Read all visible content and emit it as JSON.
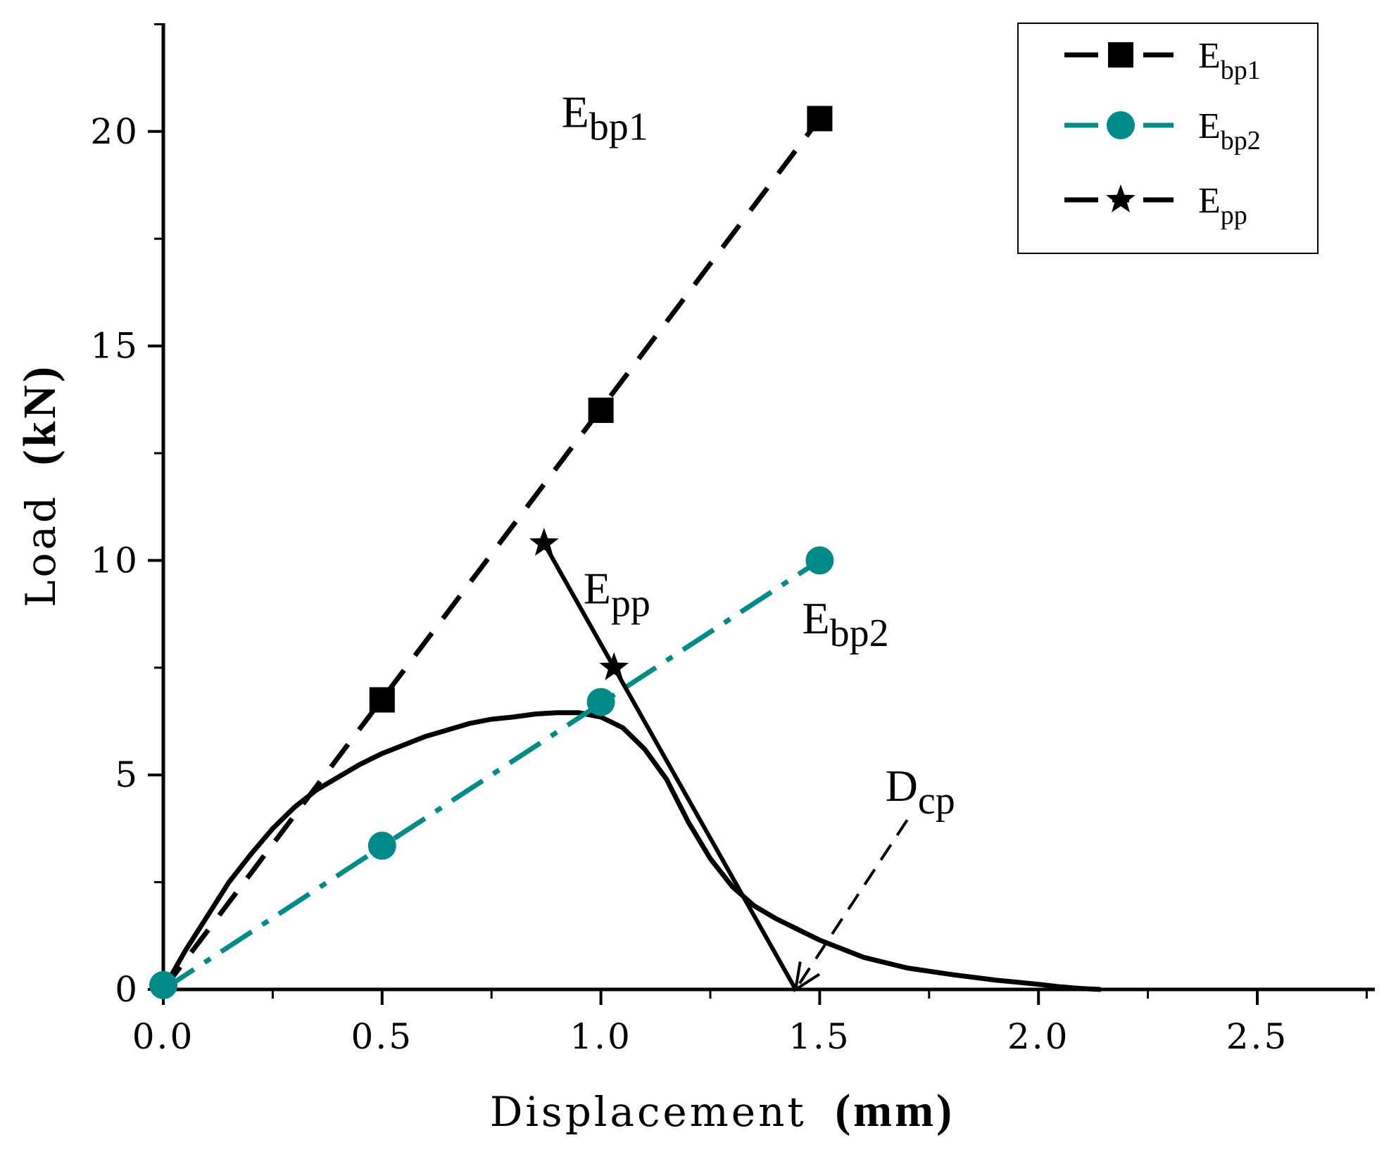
{
  "chart_data": {
    "type": "line",
    "xlabel": "Displacement",
    "xlabel_unit": "(mm)",
    "ylabel": "Load",
    "ylabel_unit": "(kN)",
    "xlim": [
      0.0,
      2.75
    ],
    "ylim": [
      0,
      22.5
    ],
    "x_ticks": [
      {
        "value": 0.0,
        "label": "0.0"
      },
      {
        "value": 0.5,
        "label": "0.5"
      },
      {
        "value": 1.0,
        "label": "1.0"
      },
      {
        "value": 1.5,
        "label": "1.5"
      },
      {
        "value": 2.0,
        "label": "2.0"
      },
      {
        "value": 2.5,
        "label": "2.5"
      }
    ],
    "x_minor_ticks": [
      0.25,
      0.75,
      1.25,
      1.75,
      2.25,
      2.75
    ],
    "y_ticks": [
      {
        "value": 0,
        "label": "0"
      },
      {
        "value": 5,
        "label": "5"
      },
      {
        "value": 10,
        "label": "10"
      },
      {
        "value": 15,
        "label": "15"
      },
      {
        "value": 20,
        "label": "20"
      }
    ],
    "y_minor_ticks": [
      2.5,
      7.5,
      12.5,
      17.5,
      22.5
    ],
    "grid": false,
    "legend_position": "top-right",
    "curve": {
      "name": "load-displacement curve",
      "x": [
        0.0,
        0.05,
        0.1,
        0.15,
        0.2,
        0.25,
        0.3,
        0.35,
        0.4,
        0.45,
        0.5,
        0.55,
        0.6,
        0.65,
        0.7,
        0.75,
        0.8,
        0.85,
        0.9,
        0.95,
        1.0,
        1.05,
        1.1,
        1.15,
        1.2,
        1.25,
        1.3,
        1.35,
        1.4,
        1.45,
        1.5,
        1.55,
        1.6,
        1.7,
        1.8,
        1.9,
        2.0,
        2.05,
        2.1,
        2.14
      ],
      "y": [
        0.0,
        0.9,
        1.7,
        2.5,
        3.15,
        3.75,
        4.25,
        4.65,
        4.95,
        5.25,
        5.5,
        5.7,
        5.9,
        6.05,
        6.2,
        6.3,
        6.35,
        6.42,
        6.45,
        6.45,
        6.35,
        6.1,
        5.6,
        4.9,
        3.9,
        3.05,
        2.4,
        1.95,
        1.65,
        1.4,
        1.15,
        0.95,
        0.75,
        0.5,
        0.35,
        0.22,
        0.12,
        0.06,
        0.02,
        0.0
      ]
    },
    "series": [
      {
        "name": "Ebp1",
        "legend_main": "E",
        "legend_sub": "bp1",
        "label_main": "E",
        "label_sub": "bp1",
        "label_at": [
          0.91,
          20.1
        ],
        "color": "#000000",
        "marker": "square",
        "line_style": "dashed",
        "x": [
          0.0,
          1.5
        ],
        "y": [
          0.0,
          20.3
        ],
        "marker_x": [
          0.5,
          1.0,
          1.5
        ],
        "marker_y": [
          6.75,
          13.5,
          20.3
        ]
      },
      {
        "name": "Ebp2",
        "legend_main": "E",
        "legend_sub": "bp2",
        "label_main": "E",
        "label_sub": "bp2",
        "label_at": [
          1.46,
          8.3
        ],
        "color": "#008B8B",
        "marker": "circle",
        "line_style": "dash-dot",
        "x": [
          0.0,
          1.5
        ],
        "y": [
          0.0,
          10.0
        ],
        "marker_x": [
          0.0,
          0.5,
          1.0,
          1.5
        ],
        "marker_y": [
          0.1,
          3.35,
          6.7,
          10.0
        ]
      },
      {
        "name": "Epp",
        "legend_main": "E",
        "legend_sub": "pp",
        "label_main": "E",
        "label_sub": "pp",
        "label_at": [
          0.96,
          9.0
        ],
        "color": "#000000",
        "marker": "star",
        "line_style": "solid",
        "x": [
          0.87,
          1.445
        ],
        "y": [
          10.4,
          0.0
        ],
        "marker_x": [
          0.87,
          1.03
        ],
        "marker_y": [
          10.4,
          7.5
        ]
      }
    ],
    "annotations": [
      {
        "name": "Dcp",
        "label_main": "D",
        "label_sub": "cp",
        "label_at": [
          1.65,
          4.4
        ],
        "arrow_from": [
          1.7,
          3.95
        ],
        "arrow_to": [
          1.445,
          0.0
        ]
      }
    ]
  }
}
